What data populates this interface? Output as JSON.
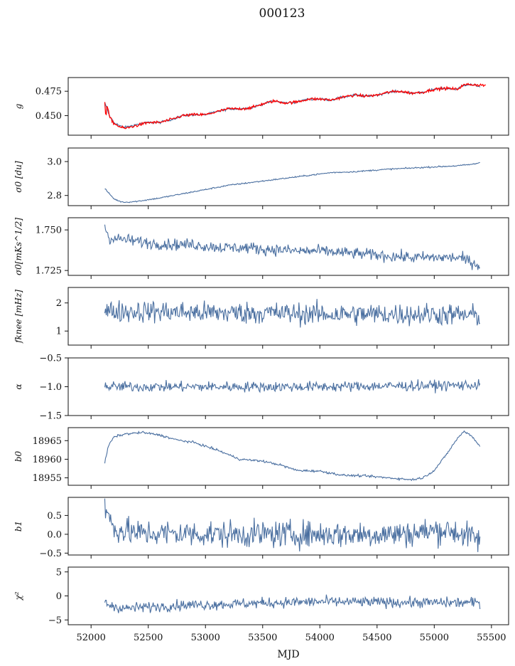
{
  "title": "000123",
  "colors": {
    "series": "#4a6fa0",
    "overlay": "#ff0000",
    "axis": "#111111"
  },
  "chart_data": {
    "type": "line",
    "title": "000123",
    "xlabel": "MJD",
    "x_tick_labels": [
      "52000",
      "52500",
      "53000",
      "53500",
      "54000",
      "54500",
      "55000",
      "55500"
    ],
    "x_range": [
      51800,
      55650
    ],
    "grid": false,
    "panels": [
      {
        "ylabel": "g",
        "ylim": [
          0.43,
          0.489
        ],
        "yticks": [
          0.45,
          0.475
        ],
        "ytick_labels": [
          "0.450",
          "0.475"
        ],
        "noise": 0.0006,
        "series": [
          {
            "x": [
              52120,
              52160,
              52200,
              52260,
              52300,
              52400,
              52500,
              52600,
              52700,
              52800,
              52900,
              53000,
              53100,
              53200,
              53300,
              53400,
              53500,
              53600,
              53700,
              53800,
              53900,
              54000,
              54100,
              54200,
              54300,
              54400,
              54500,
              54600,
              54700,
              54800,
              54900,
              55000,
              55100,
              55200,
              55250,
              55300,
              55400
            ],
            "y": [
              0.463,
              0.45,
              0.443,
              0.439,
              0.438,
              0.441,
              0.443,
              0.443,
              0.446,
              0.45,
              0.451,
              0.451,
              0.454,
              0.457,
              0.457,
              0.458,
              0.462,
              0.465,
              0.463,
              0.464,
              0.467,
              0.467,
              0.466,
              0.469,
              0.471,
              0.47,
              0.471,
              0.474,
              0.475,
              0.473,
              0.474,
              0.477,
              0.478,
              0.477,
              0.481,
              0.482,
              0.48
            ]
          }
        ],
        "overlay": {
          "x": [
            52120,
            52130,
            52140,
            52160,
            52200,
            52260,
            52300,
            52400,
            52500,
            52600,
            52700,
            52800,
            52900,
            53000,
            53100,
            53200,
            53300,
            53400,
            53500,
            53600,
            53700,
            53800,
            53900,
            54000,
            54100,
            54200,
            54300,
            54400,
            54500,
            54600,
            54700,
            54800,
            54900,
            55000,
            55100,
            55200,
            55250,
            55300,
            55450
          ],
          "y": [
            0.464,
            0.446,
            0.461,
            0.449,
            0.442,
            0.438,
            0.437,
            0.44,
            0.443,
            0.443,
            0.446,
            0.45,
            0.451,
            0.451,
            0.454,
            0.457,
            0.457,
            0.458,
            0.462,
            0.465,
            0.463,
            0.464,
            0.467,
            0.467,
            0.466,
            0.469,
            0.471,
            0.47,
            0.471,
            0.474,
            0.475,
            0.473,
            0.474,
            0.477,
            0.478,
            0.477,
            0.481,
            0.482,
            0.481
          ]
        }
      },
      {
        "ylabel": "σ0 [du]",
        "ylim": [
          2.74,
          3.08
        ],
        "yticks": [
          2.8,
          3.0
        ],
        "ytick_labels": [
          "2.8",
          "3.0"
        ],
        "noise": 0.002,
        "series": [
          {
            "x": [
              52120,
              52200,
              52250,
              52300,
              52400,
              52600,
              52800,
              53000,
              53200,
              53500,
              53800,
              54100,
              54300,
              54600,
              54900,
              55200,
              55350,
              55400
            ],
            "y": [
              2.84,
              2.78,
              2.765,
              2.76,
              2.765,
              2.785,
              2.81,
              2.835,
              2.86,
              2.885,
              2.91,
              2.935,
              2.94,
              2.955,
              2.965,
              2.975,
              2.985,
              2.995
            ]
          }
        ]
      },
      {
        "ylabel": "σ0[mKs^1/2]",
        "ylim": [
          1.722,
          1.7575
        ],
        "yticks": [
          1.725,
          1.75
        ],
        "ytick_labels": [
          "1.725",
          "1.750"
        ],
        "noise": 0.0018,
        "series": [
          {
            "x": [
              52120,
              52140,
              52160,
              52300,
              52500,
              52700,
              52900,
              53000,
              53200,
              53400,
              53500,
              53600,
              53800,
              54000,
              54200,
              54400,
              54600,
              54800,
              55000,
              55200,
              55300,
              55400
            ],
            "y": [
              1.753,
              1.748,
              1.745,
              1.744,
              1.742,
              1.741,
              1.741,
              1.74,
              1.739,
              1.739,
              1.738,
              1.738,
              1.737,
              1.737,
              1.736,
              1.735,
              1.734,
              1.733,
              1.733,
              1.733,
              1.731,
              1.728
            ]
          }
        ]
      },
      {
        "ylabel": "fknee [mHz]",
        "ylim": [
          0.5,
          2.55
        ],
        "yticks": [
          1,
          2
        ],
        "ytick_labels": [
          "1",
          "2"
        ],
        "noise": 0.2,
        "series": [
          {
            "x": [
              52120,
              52500,
              53000,
              53500,
              54000,
              54500,
              55000,
              55400
            ],
            "y": [
              1.7,
              1.7,
              1.65,
              1.65,
              1.6,
              1.6,
              1.6,
              1.55
            ]
          }
        ]
      },
      {
        "ylabel": "α",
        "ylim": [
          -1.5,
          -0.5
        ],
        "yticks": [
          -1.5,
          -1.0,
          -0.5
        ],
        "ytick_labels": [
          "−1.5",
          "−1.0",
          "−0.5"
        ],
        "noise": 0.045,
        "series": [
          {
            "x": [
              52120,
              52500,
              53000,
              53500,
              54000,
              54500,
              55000,
              55400
            ],
            "y": [
              -1.0,
              -1.0,
              -1.0,
              -1.0,
              -1.0,
              -0.99,
              -0.98,
              -0.97
            ]
          }
        ]
      },
      {
        "ylabel": "b0",
        "ylim": [
          18953,
          18968.5
        ],
        "yticks": [
          18955,
          18960,
          18965
        ],
        "ytick_labels": [
          "18955",
          "18960",
          "18965"
        ],
        "noise": 0.15,
        "series": [
          {
            "x": [
              52120,
              52150,
              52200,
              52300,
              52450,
              52600,
              52750,
              52900,
              53100,
              53300,
              53500,
              53650,
              53800,
              54000,
              54200,
              54400,
              54600,
              54800,
              54900,
              55000,
              55100,
              55200,
              55260,
              55320,
              55400
            ],
            "y": [
              18959,
              18963.5,
              18966,
              18966.8,
              18967.2,
              18966.5,
              18965.2,
              18964.5,
              18962.5,
              18960,
              18959.5,
              18958.5,
              18957,
              18956.8,
              18955.7,
              18955.5,
              18955,
              18954.5,
              18955,
              18957,
              18961,
              18965.5,
              18967.5,
              18966.5,
              18963.5
            ]
          }
        ]
      },
      {
        "ylabel": "b1",
        "ylim": [
          -0.55,
          0.98
        ],
        "yticks": [
          -0.5,
          0.0,
          0.5
        ],
        "ytick_labels": [
          "−0.5",
          "0.0",
          "0.5"
        ],
        "noise": 0.18,
        "series": [
          {
            "x": [
              52120,
              52140,
              52200,
              52400,
              52800,
              53200,
              53600,
              54000,
              54400,
              54800,
              55000,
              55100,
              55200,
              55300,
              55400
            ],
            "y": [
              0.75,
              0.55,
              0.15,
              0.03,
              0.02,
              0.0,
              0.0,
              0.0,
              0.0,
              0.02,
              0.1,
              0.12,
              0.05,
              -0.05,
              -0.15
            ]
          }
        ]
      },
      {
        "ylabel": "χ²",
        "ylim": [
          -6,
          6
        ],
        "yticks": [
          -5,
          0,
          5
        ],
        "ytick_labels": [
          "−5",
          "0",
          "5"
        ],
        "noise": 0.55,
        "series": [
          {
            "x": [
              52120,
              52200,
              52300,
              52500,
              52800,
              53200,
              53600,
              54000,
              54500,
              55000,
              55400
            ],
            "y": [
              -1.5,
              -2.2,
              -2.6,
              -2.3,
              -1.9,
              -1.7,
              -1.4,
              -1.2,
              -1.3,
              -1.4,
              -1.4
            ]
          }
        ]
      }
    ]
  }
}
